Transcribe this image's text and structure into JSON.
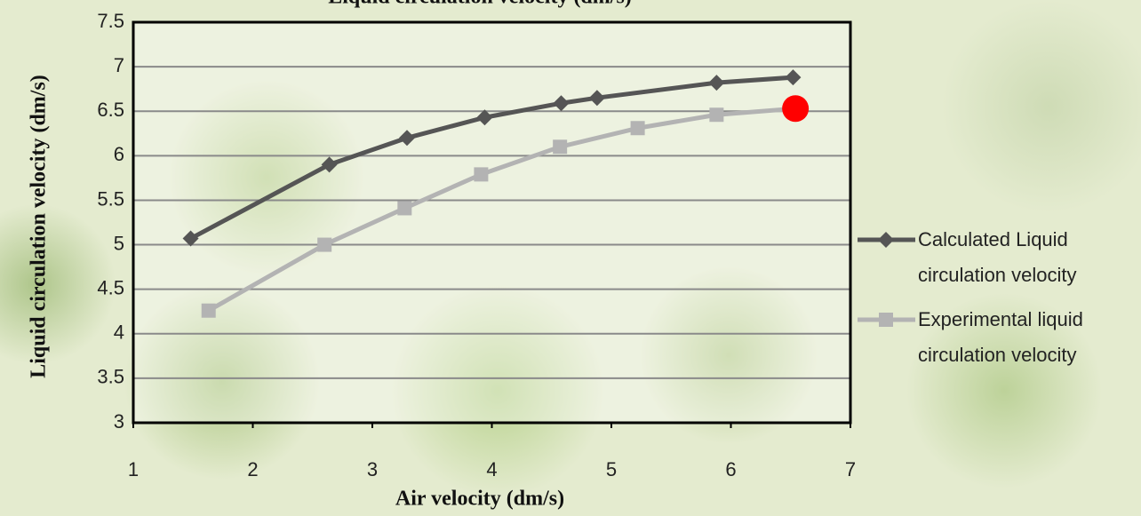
{
  "chart_data": {
    "type": "line",
    "title": "Liquid circulation velocity (dm/s)",
    "x_label": "Air velocity (dm/s)",
    "y_label": "Liquid circulation velocity (dm/s)",
    "xlim": [
      1,
      7
    ],
    "xticks": [
      1,
      2,
      3,
      4,
      5,
      6,
      7
    ],
    "ylim": [
      3,
      7.5
    ],
    "yticks": [
      3,
      3.5,
      4,
      4.5,
      5,
      5.5,
      6,
      6.5,
      7,
      7.5
    ],
    "grid": true,
    "legend": "right",
    "series": [
      {
        "name": "Calculated Liquid circulation velocity",
        "color": "#555555",
        "marker": "diamond",
        "x": [
          1.48,
          2.64,
          3.29,
          3.94,
          4.58,
          4.88,
          5.88,
          6.52
        ],
        "values": [
          5.07,
          5.9,
          6.2,
          6.43,
          6.59,
          6.65,
          6.82,
          6.88
        ]
      },
      {
        "name": "Experimental liquid circulation velocity",
        "color": "#b3b3b3",
        "marker": "square",
        "x": [
          1.63,
          2.6,
          3.27,
          3.91,
          4.57,
          5.22,
          5.88,
          6.54
        ],
        "values": [
          4.26,
          5.0,
          5.41,
          5.79,
          6.1,
          6.31,
          6.46,
          6.53
        ]
      }
    ],
    "highlight_point": {
      "x": 6.54,
      "y": 6.53,
      "color": "#ff0000"
    }
  }
}
